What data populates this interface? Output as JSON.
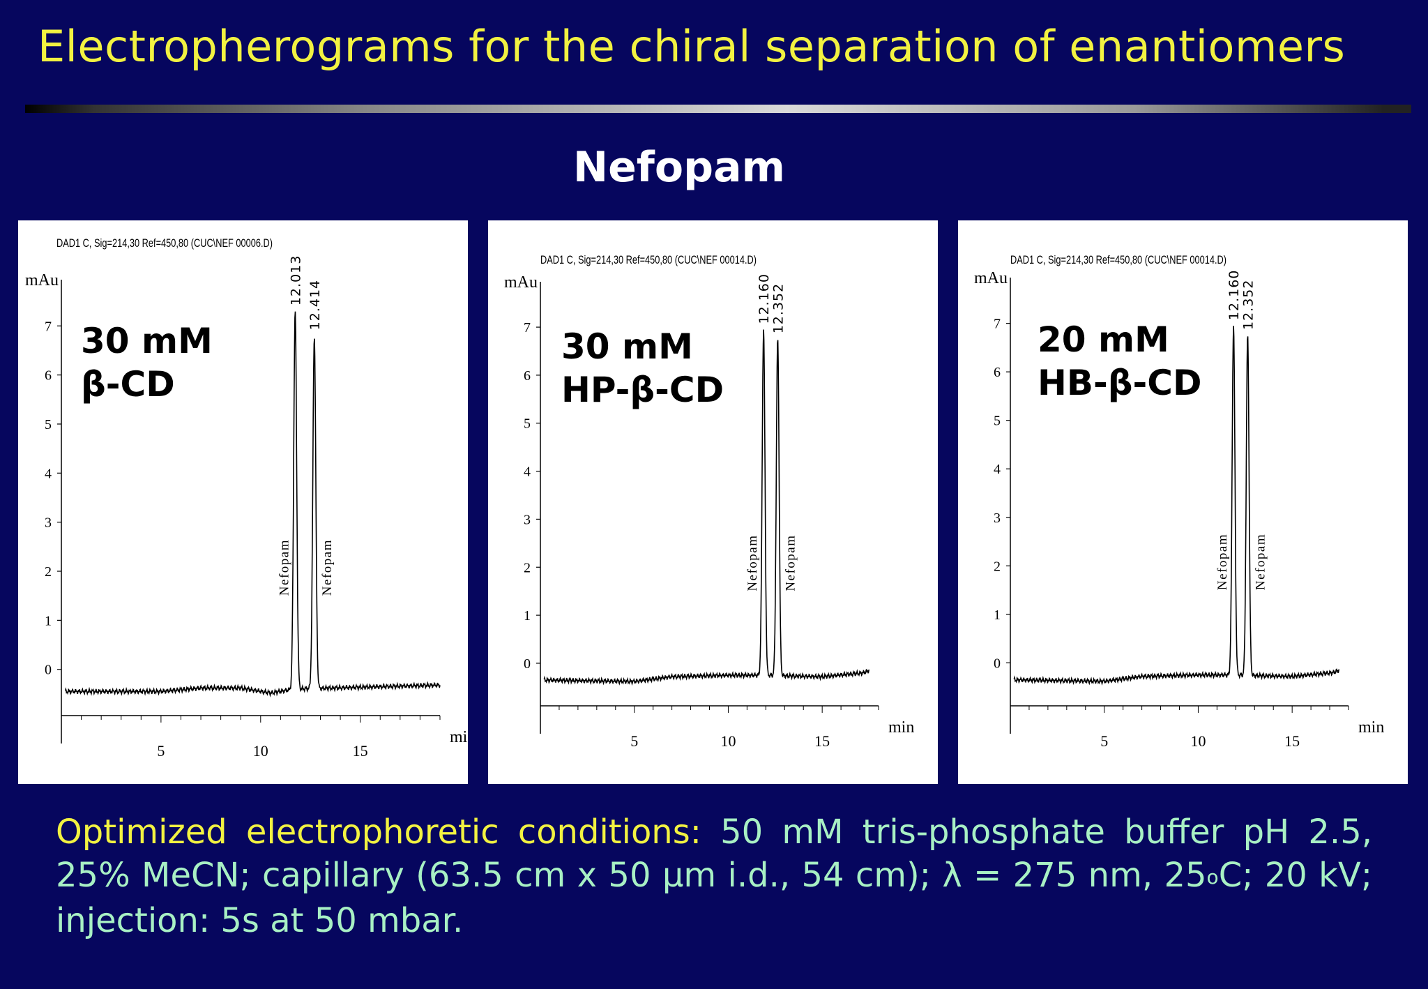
{
  "slide": {
    "title": "Electropherograms for the chiral separation of enantiomers",
    "subtitle": "Nefopam"
  },
  "colors": {
    "background": "#06065e",
    "title": "#f2f241",
    "subtitle": "#ffffff",
    "footer_text": "#a8f0c4",
    "panel": "#ffffff"
  },
  "chart_data": [
    {
      "type": "line",
      "header": "DAD1 C, Sig=214,30 Ref=450,80 (CUC\\NEF 00006.D)",
      "condition_line1": "30 mM",
      "condition_line2": "β-CD",
      "ylabel": "mAu",
      "xlabel": "min",
      "xlim": [
        0,
        19
      ],
      "ylim": [
        -0.8,
        7.8
      ],
      "xticks": [
        5,
        10,
        15
      ],
      "yticks": [
        0,
        1,
        2,
        3,
        4,
        5,
        6,
        7
      ],
      "peaks": [
        {
          "time": 12.013,
          "time_label": "12.013",
          "name": "Nefopam",
          "height": 7.3
        },
        {
          "time": 12.414,
          "time_label": "12.414",
          "name": "Nefopam",
          "height": 6.8
        }
      ],
      "plot_xrange": [
        0,
        19
      ],
      "baseline": [
        [
          0.2,
          -0.45
        ],
        [
          5,
          -0.45
        ],
        [
          7,
          -0.38
        ],
        [
          9,
          -0.38
        ],
        [
          10.5,
          -0.48
        ],
        [
          11.7,
          -0.4
        ],
        [
          19,
          -0.32
        ]
      ]
    },
    {
      "type": "line",
      "header": "DAD1 C, Sig=214,30 Ref=450,80 (CUC\\NEF 00014.D)",
      "condition_line1": "30 mM",
      "condition_line2": "HP-β-CD",
      "ylabel": "mAu",
      "xlabel": "min",
      "xlim": [
        0,
        18
      ],
      "ylim": [
        -0.8,
        7.8
      ],
      "xticks": [
        5,
        10,
        15
      ],
      "yticks": [
        0,
        1,
        2,
        3,
        4,
        5,
        6,
        7
      ],
      "peaks": [
        {
          "time": 12.16,
          "time_label": "12.160",
          "name": "Nefopam",
          "height": 6.95
        },
        {
          "time": 12.352,
          "time_label": "12.352",
          "name": "Nefopam",
          "height": 6.75
        }
      ],
      "plot_xrange": [
        0,
        17.5
      ],
      "baseline": [
        [
          0.2,
          -0.35
        ],
        [
          5,
          -0.38
        ],
        [
          7,
          -0.28
        ],
        [
          10,
          -0.25
        ],
        [
          11.8,
          -0.25
        ],
        [
          15,
          -0.28
        ],
        [
          17.2,
          -0.2
        ],
        [
          17.5,
          -0.15
        ]
      ]
    },
    {
      "type": "line",
      "header": "DAD1 C, Sig=214,30 Ref=450,80 (CUC\\NEF 00014.D)",
      "condition_line1": "20 mM",
      "condition_line2": "HB-β-CD",
      "ylabel": "mAu",
      "xlabel": "min",
      "xlim": [
        0,
        18
      ],
      "ylim": [
        -0.8,
        7.8
      ],
      "xticks": [
        5,
        10,
        15
      ],
      "yticks": [
        0,
        1,
        2,
        3,
        4,
        5,
        6,
        7
      ],
      "peaks": [
        {
          "time": 12.16,
          "time_label": "12.160",
          "name": "Nefopam",
          "height": 6.95
        },
        {
          "time": 12.352,
          "time_label": "12.352",
          "name": "Nefopam",
          "height": 6.75
        }
      ],
      "plot_xrange": [
        0,
        17.5
      ],
      "baseline": [
        [
          0.2,
          -0.35
        ],
        [
          5,
          -0.38
        ],
        [
          7,
          -0.28
        ],
        [
          10,
          -0.25
        ],
        [
          11.8,
          -0.25
        ],
        [
          15,
          -0.28
        ],
        [
          17.2,
          -0.2
        ],
        [
          17.5,
          -0.15
        ]
      ]
    }
  ],
  "footer": {
    "lead": "Optimized electrophoretic conditions:",
    "line1_rest": "50 mM tris-phosphate buffer pH",
    "line2": "2.5, 25% MeCN; capillary (63.5 cm x 50 μm i.d., 54 cm); λ = 275 nm,",
    "line3_a": "25",
    "line3_sup": "o",
    "line3_b": "C; 20 kV; injection: 5s at 50 mbar."
  }
}
